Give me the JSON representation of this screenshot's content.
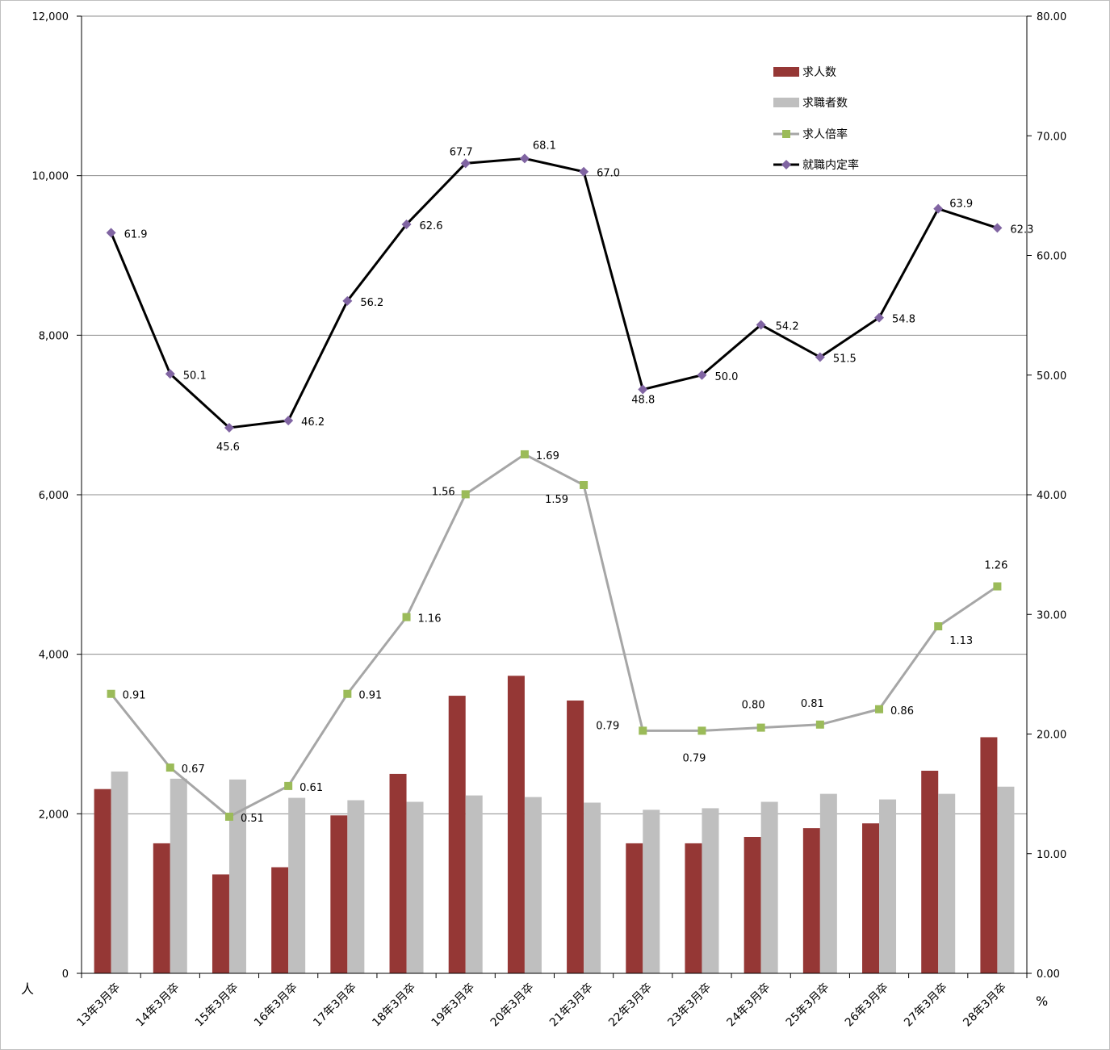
{
  "chart_data": {
    "type": "bar",
    "categories": [
      "13年3月卒",
      "14年3月卒",
      "15年3月卒",
      "16年3月卒",
      "17年3月卒",
      "18年3月卒",
      "19年3月卒",
      "20年3月卒",
      "21年3月卒",
      "22年3月卒",
      "23年3月卒",
      "24年3月卒",
      "25年3月卒",
      "26年3月卒",
      "27年3月卒",
      "28年3月卒"
    ],
    "left_axis": {
      "unit": "人",
      "ylim": [
        0,
        12000
      ],
      "ticks": [
        "0",
        "2,000",
        "4,000",
        "6,000",
        "8,000",
        "10,000",
        "12,000"
      ],
      "tick_values": [
        0,
        2000,
        4000,
        6000,
        8000,
        10000,
        12000
      ]
    },
    "right_axis": {
      "unit": "%",
      "ylim": [
        0,
        80
      ],
      "ticks": [
        "0.00",
        "10.00",
        "20.00",
        "30.00",
        "40.00",
        "50.00",
        "60.00",
        "70.00",
        "80.00"
      ],
      "tick_values": [
        0,
        10,
        20,
        30,
        40,
        50,
        60,
        70,
        80
      ]
    },
    "grid": true,
    "legend_position": "top-right",
    "series": [
      {
        "name": "求人数",
        "kind": "bar",
        "axis": "left",
        "color": "#953735",
        "values": [
          2310,
          1630,
          1240,
          1330,
          1980,
          2500,
          3480,
          3730,
          3420,
          1630,
          1630,
          1710,
          1820,
          1880,
          2540,
          2960
        ]
      },
      {
        "name": "求職者数",
        "kind": "bar",
        "axis": "left",
        "color": "#bfbfbf",
        "values": [
          2530,
          2440,
          2430,
          2200,
          2170,
          2150,
          2230,
          2210,
          2140,
          2050,
          2070,
          2150,
          2250,
          2180,
          2250,
          2340
        ]
      },
      {
        "name": "求人倍率",
        "kind": "line",
        "axis": "left",
        "scale_note": "",
        "color": "#a6a6a6",
        "marker_color": "#9bbb59",
        "marker": "square",
        "values": [
          0.91,
          0.67,
          0.51,
          0.61,
          0.91,
          1.16,
          1.56,
          1.69,
          1.59,
          0.79,
          0.79,
          0.8,
          0.81,
          0.86,
          1.13,
          1.26
        ],
        "labels": [
          "0.91",
          "0.67",
          "0.51",
          "0.61",
          "0.91",
          "1.16",
          "1.56",
          "1.69",
          "1.59",
          "0.79",
          "0.79",
          "0.80",
          "0.81",
          "0.86",
          "1.13",
          "1.26"
        ]
      },
      {
        "name": "就職内定率",
        "kind": "line",
        "axis": "right",
        "color": "#000000",
        "marker_color": "#8064a2",
        "marker": "diamond",
        "values": [
          61.9,
          50.1,
          45.6,
          46.2,
          56.2,
          62.6,
          67.7,
          68.1,
          67.0,
          48.8,
          50.0,
          54.2,
          51.5,
          54.8,
          63.9,
          62.3
        ],
        "labels": [
          "61.9",
          "50.1",
          "45.6",
          "46.2",
          "56.2",
          "62.6",
          "67.7",
          "68.1",
          "67.0",
          "48.8",
          "50.0",
          "54.2",
          "51.5",
          "54.8",
          "63.9",
          "62.3"
        ]
      }
    ]
  }
}
